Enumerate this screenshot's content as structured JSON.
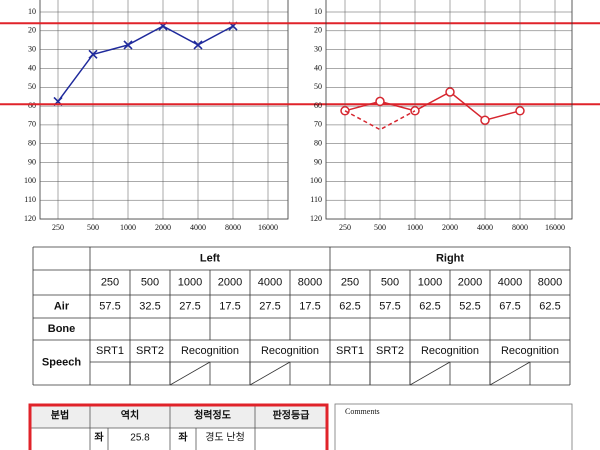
{
  "chart_data": [
    {
      "type": "line",
      "categories": [
        "250",
        "500",
        "1000",
        "2000",
        "4000",
        "8000",
        "16000"
      ],
      "series": [
        {
          "name": "Left Air",
          "color": "#1f2a9c",
          "marker": "x",
          "line_style": "solid",
          "values": [
            57.5,
            32.5,
            27.5,
            17.5,
            27.5,
            17.5,
            null
          ]
        }
      ],
      "ylim": [
        0,
        120
      ],
      "yticks": [
        10,
        20,
        30,
        40,
        50,
        60,
        70,
        80,
        90,
        100,
        110,
        120
      ],
      "y_inverted": true,
      "grid": true,
      "reference_lines": [
        16,
        59
      ],
      "reference_color": "#e0232a"
    },
    {
      "type": "line",
      "categories": [
        "250",
        "500",
        "1000",
        "2000",
        "4000",
        "8000",
        "16000"
      ],
      "series": [
        {
          "name": "Right Air",
          "color": "#d6262f",
          "marker": "o",
          "line_style": "solid",
          "values": [
            62.5,
            57.5,
            62.5,
            52.5,
            67.5,
            62.5,
            null
          ]
        },
        {
          "name": "Right Masked",
          "color": "#d6262f",
          "marker": "none",
          "line_style": "dashed",
          "values": [
            62.5,
            72.5,
            62.5,
            null,
            null,
            null,
            null
          ]
        }
      ],
      "ylim": [
        0,
        120
      ],
      "yticks": [
        10,
        20,
        30,
        40,
        50,
        60,
        70,
        80,
        90,
        100,
        110,
        120
      ],
      "y_inverted": true,
      "grid": true
    }
  ],
  "table": {
    "sides": [
      "Left",
      "Right"
    ],
    "frequencies": [
      250,
      500,
      1000,
      2000,
      4000,
      8000,
      250,
      500,
      1000,
      2000,
      4000,
      8000
    ],
    "rows": [
      {
        "label": "Air",
        "values": [
          57.5,
          32.5,
          27.5,
          17.5,
          27.5,
          17.5,
          62.5,
          57.5,
          62.5,
          52.5,
          67.5,
          62.5
        ]
      },
      {
        "label": "Bone"
      }
    ],
    "speech": {
      "label": "Speech",
      "cells": [
        "SRT1",
        "SRT2",
        "Recognition",
        "Recognition",
        "SRT1",
        "SRT2",
        "Recognition",
        "Recognition"
      ]
    }
  },
  "summary": {
    "headers": [
      "분법",
      "역치",
      "청력정도",
      "판정등급"
    ],
    "row": [
      "좌",
      "25.8",
      "좌",
      "경도 난청"
    ]
  },
  "comments": "Comments"
}
